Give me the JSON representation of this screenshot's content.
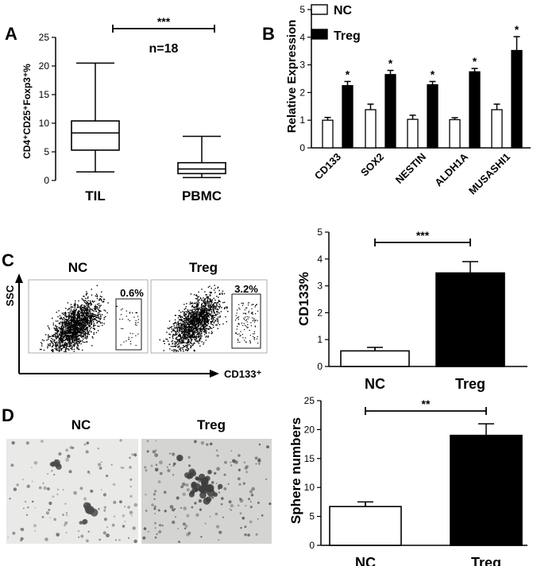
{
  "chart_data": [
    {
      "panel": "A",
      "type": "box",
      "ylabel": "CD4⁺CD25⁺Foxp3⁺%",
      "ylim": [
        0,
        25
      ],
      "yticks": [
        "0",
        "5",
        "10",
        "15",
        "20",
        "25"
      ],
      "categories": [
        "TIL",
        "PBMC"
      ],
      "boxes": [
        {
          "min": 1.5,
          "q1": 5.3,
          "median": 8.3,
          "q3": 10.4,
          "max": 20.5
        },
        {
          "min": 0.5,
          "q1": 1.2,
          "median": 2.0,
          "q3": 3.1,
          "max": 7.7
        }
      ],
      "annotation": "n=18",
      "significance": "***"
    },
    {
      "panel": "B",
      "type": "bar",
      "ylabel": "Relative Expression",
      "ylim": [
        0,
        5
      ],
      "yticks": [
        "0",
        "1",
        "2",
        "3",
        "4",
        "5"
      ],
      "categories": [
        "CD133",
        "SOX2",
        "NESTIN",
        "ALDH1A",
        "MUSASHI1"
      ],
      "series": [
        {
          "name": "NC",
          "values": [
            1.0,
            1.38,
            1.03,
            1.02,
            1.38
          ],
          "errors": [
            0.1,
            0.2,
            0.15,
            0.07,
            0.2
          ],
          "color": "#ffffff"
        },
        {
          "name": "Treg",
          "values": [
            2.25,
            2.65,
            2.28,
            2.75,
            3.52
          ],
          "errors": [
            0.15,
            0.15,
            0.12,
            0.12,
            0.5
          ],
          "color": "#000000"
        }
      ],
      "significance": [
        "*",
        "*",
        "*",
        "*",
        "*"
      ]
    },
    {
      "panel": "C",
      "type": "scatter",
      "xlabel": "CD133⁺",
      "ylabel": "SSC",
      "plots": [
        {
          "title": "NC",
          "gate_percent": "0.6%"
        },
        {
          "title": "Treg",
          "gate_percent": "3.2%"
        }
      ]
    },
    {
      "panel": "C-bar",
      "type": "bar",
      "ylabel": "CD133%",
      "ylim": [
        0,
        5
      ],
      "yticks": [
        "0",
        "1",
        "2",
        "3",
        "4",
        "5"
      ],
      "categories": [
        "NC",
        "Treg"
      ],
      "values": [
        0.58,
        3.48
      ],
      "errors": [
        0.13,
        0.42
      ],
      "colors": [
        "#ffffff",
        "#000000"
      ],
      "significance": "***"
    },
    {
      "panel": "D",
      "type": "image",
      "titles": [
        "NC",
        "Treg"
      ]
    },
    {
      "panel": "D-bar",
      "type": "bar",
      "ylabel": "Sphere numbers",
      "ylim": [
        0,
        25
      ],
      "yticks": [
        "0",
        "5",
        "10",
        "15",
        "20",
        "25"
      ],
      "categories": [
        "NC",
        "Treg"
      ],
      "values": [
        6.7,
        19.0
      ],
      "errors": [
        0.8,
        2.0
      ],
      "colors": [
        "#ffffff",
        "#000000"
      ],
      "significance": "**"
    }
  ],
  "panel_letters": [
    "A",
    "B",
    "C",
    "D"
  ]
}
